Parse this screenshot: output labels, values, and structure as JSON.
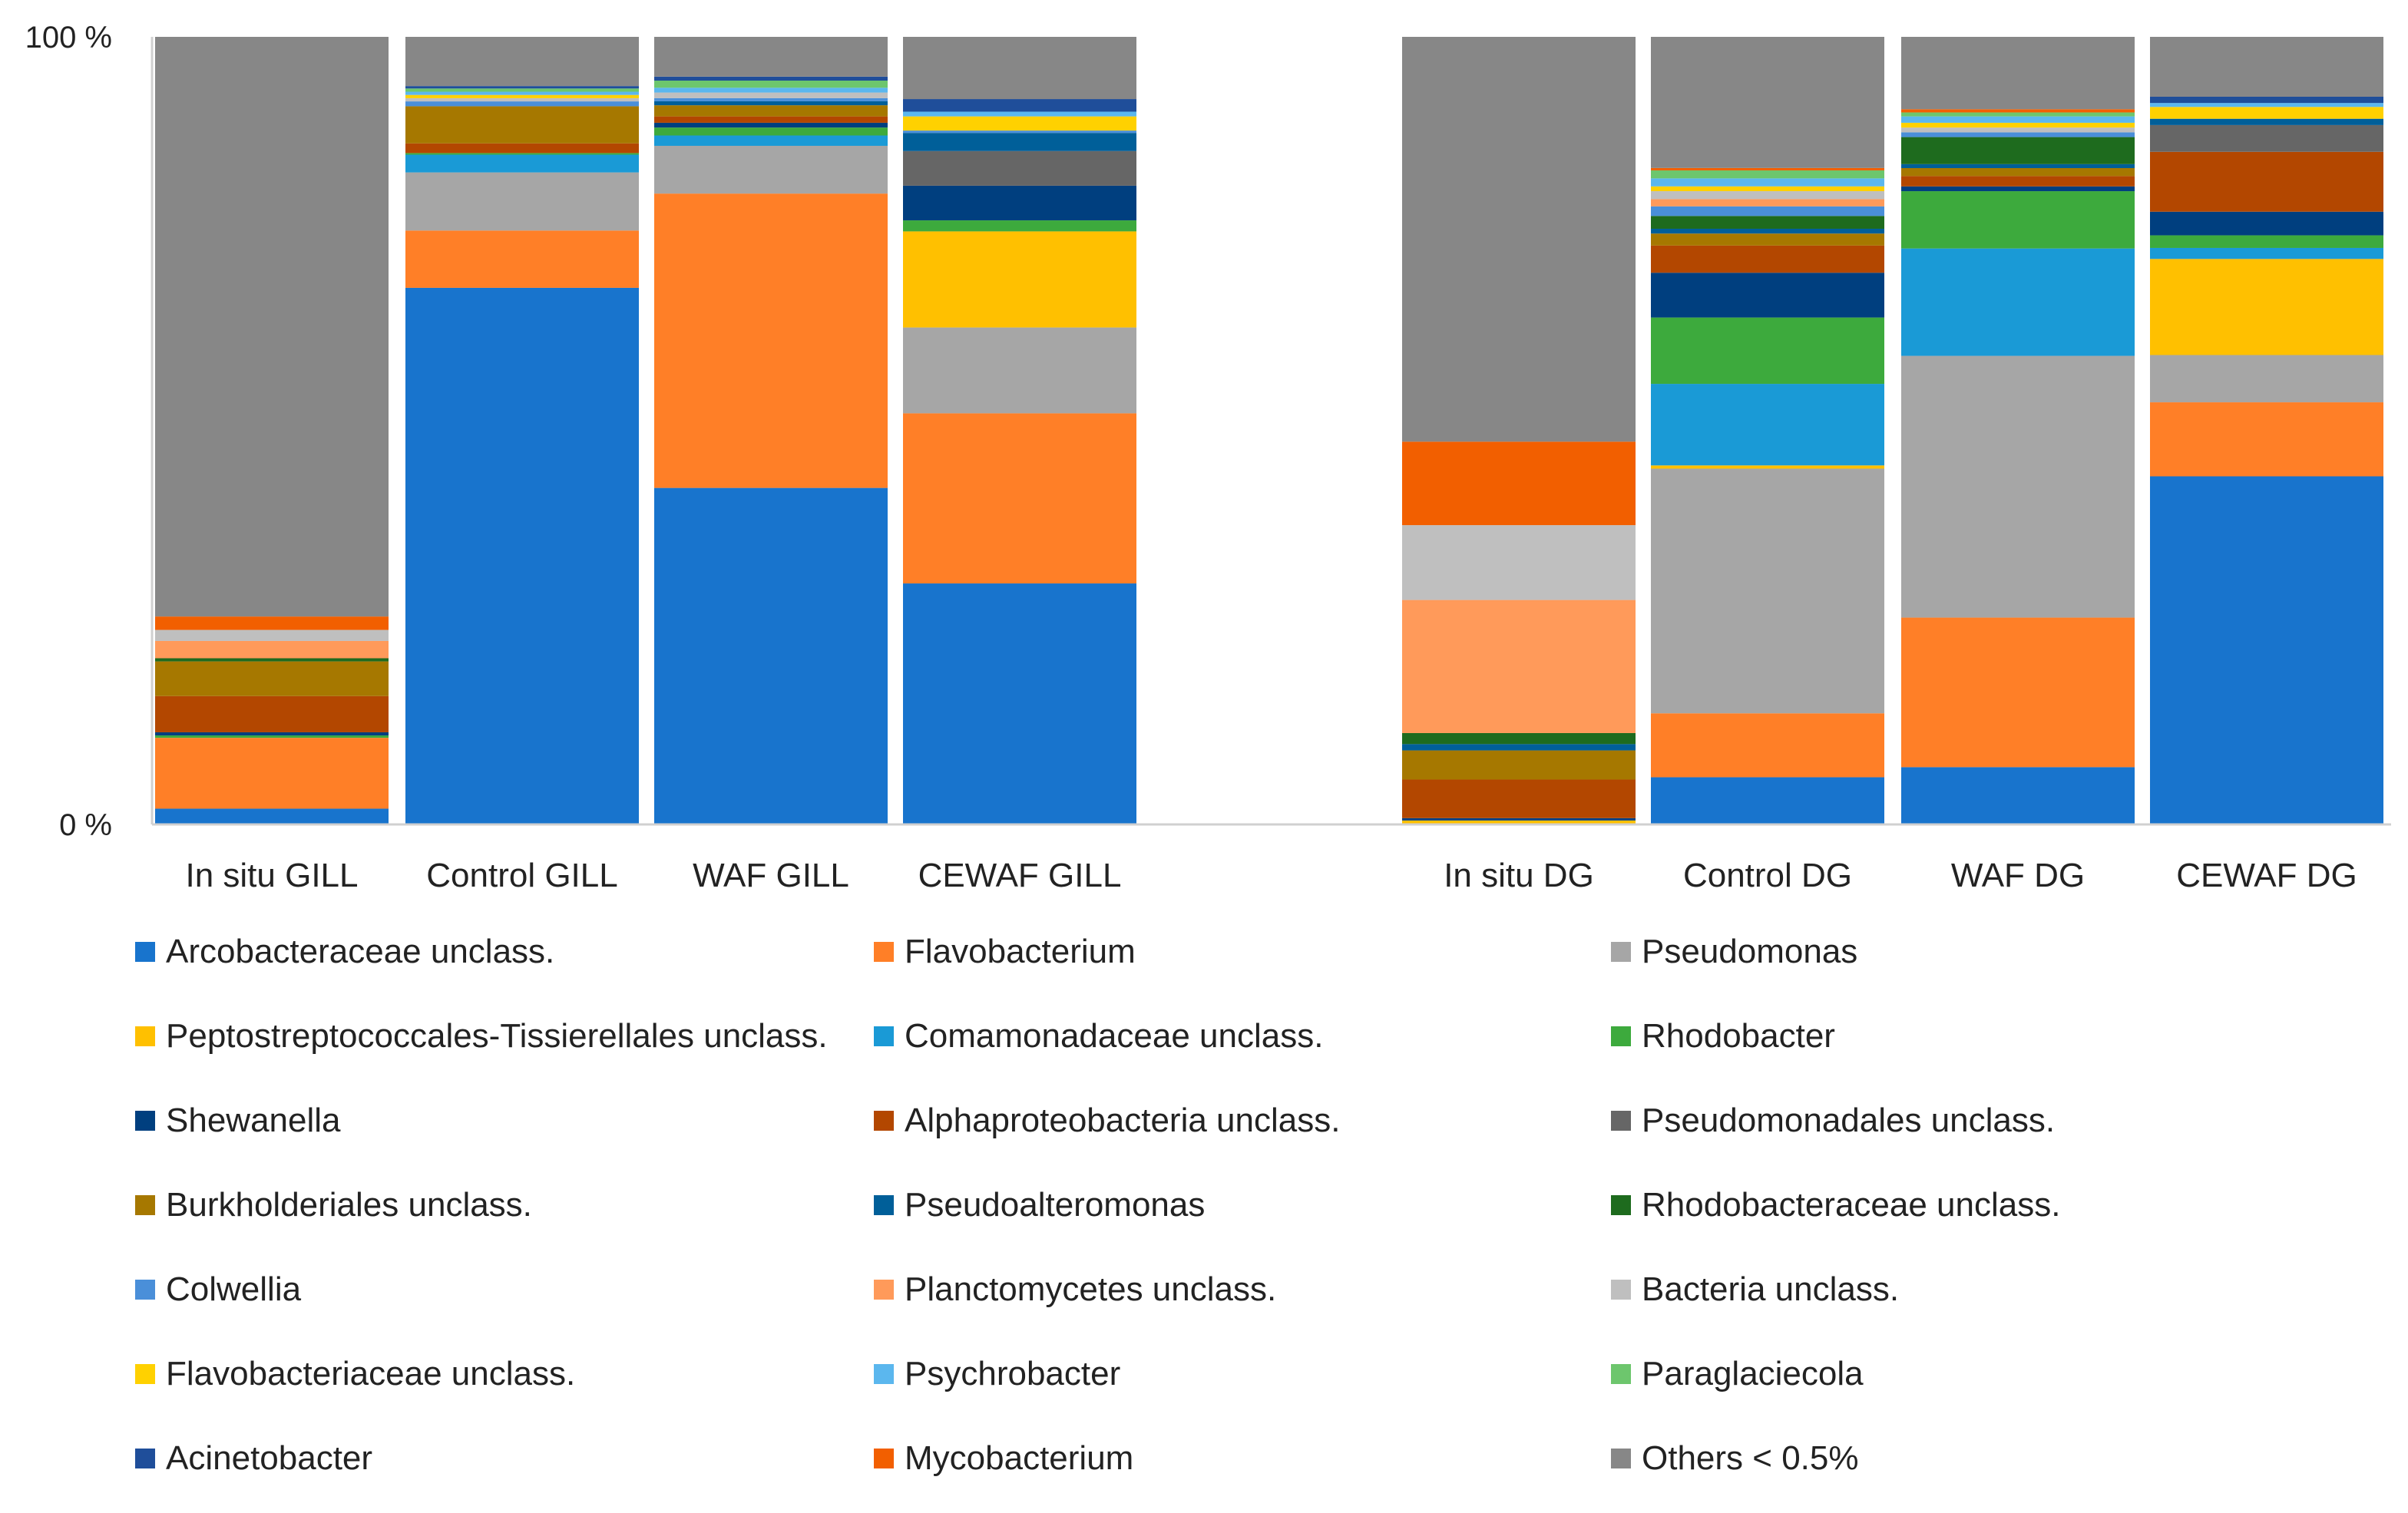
{
  "chart_data": {
    "type": "bar",
    "stacked": true,
    "percent": true,
    "ylim": [
      0,
      100
    ],
    "ytick_labels": [
      "0 %",
      "100 %"
    ],
    "categories": [
      "In situ GILL",
      "Control GILL",
      "WAF GILL",
      "CEWAF GILL",
      "In situ DG",
      "Control DG",
      "WAF DG",
      "CEWAF DG"
    ],
    "series": [
      {
        "name": "Arcobacteraceae unclass.",
        "color": "#1874CD",
        "values": [
          2.0,
          66.5,
          42.3,
          30.6,
          0,
          5.9,
          7.2,
          44.2
        ]
      },
      {
        "name": "Flavobacterium",
        "color": "#FF7F27",
        "values": [
          9.0,
          7.1,
          37.0,
          21.6,
          0,
          8.0,
          18.8,
          9.4
        ]
      },
      {
        "name": "Pseudomonas",
        "color": "#A6A6A6",
        "values": [
          0,
          7.2,
          6.0,
          10.9,
          0,
          30.6,
          32.9,
          6.0
        ]
      },
      {
        "name": "Peptostreptococcales-Tissierellales unclass.",
        "color": "#FFC000",
        "values": [
          0,
          0,
          0,
          12.2,
          0.5,
          0.4,
          0,
          12.2
        ]
      },
      {
        "name": "Comamonadaceae unclass.",
        "color": "#1A9AD6",
        "values": [
          0,
          2.2,
          1.3,
          0,
          0,
          10.2,
          13.5,
          1.4
        ]
      },
      {
        "name": "Rhodobacter",
        "color": "#3DAA3D",
        "values": [
          0.3,
          0.2,
          1.0,
          1.4,
          0,
          8.3,
          7.2,
          1.6
        ]
      },
      {
        "name": "Shewanella",
        "color": "#003F7F",
        "values": [
          0.4,
          0,
          0.6,
          4.4,
          0.3,
          5.6,
          0.6,
          3.0
        ]
      },
      {
        "name": "Alphaproteobacteria unclass.",
        "color": "#B34700",
        "values": [
          4.6,
          1.2,
          0.8,
          0,
          4.9,
          3.4,
          1.3,
          7.6
        ]
      },
      {
        "name": "Pseudomonadales unclass.",
        "color": "#666666",
        "values": [
          0,
          0,
          0,
          4.4,
          0,
          0,
          0,
          3.4
        ]
      },
      {
        "name": "Burkholderiales unclass.",
        "color": "#A67800",
        "values": [
          4.4,
          4.6,
          1.4,
          0,
          3.7,
          1.5,
          1.0,
          0
        ]
      },
      {
        "name": "Pseudoalteromonas",
        "color": "#005F99",
        "values": [
          0,
          0,
          0.5,
          2.3,
          0.8,
          0.6,
          0.5,
          0.8
        ]
      },
      {
        "name": "Rhodobacteraceae unclass.",
        "color": "#1E6B1E",
        "values": [
          0.4,
          0,
          0,
          0,
          1.4,
          1.6,
          3.4,
          0
        ]
      },
      {
        "name": "Colwellia",
        "color": "#4A8FD9",
        "values": [
          0,
          0.6,
          0.4,
          0.3,
          0,
          1.2,
          0.6,
          0
        ]
      },
      {
        "name": "Planctomycetes unclass.",
        "color": "#FF9A5A",
        "values": [
          2.2,
          0,
          0,
          0,
          16.9,
          0.9,
          0,
          0
        ]
      },
      {
        "name": "Bacteria unclass.",
        "color": "#BFBFBF",
        "values": [
          1.4,
          0.4,
          0.7,
          0,
          9.5,
          1.0,
          0.6,
          0
        ]
      },
      {
        "name": "Flavobacteriaceae unclass.",
        "color": "#FFD100",
        "values": [
          0,
          0.4,
          0,
          1.8,
          0,
          0.6,
          0.6,
          1.5
        ]
      },
      {
        "name": "Psychrobacter",
        "color": "#5BB7EE",
        "values": [
          0,
          0.4,
          0.6,
          0.6,
          0,
          1.0,
          0.8,
          0.5
        ]
      },
      {
        "name": "Paraglaciecola",
        "color": "#6DC66D",
        "values": [
          0,
          0.4,
          0.9,
          0,
          0,
          1.0,
          0.5,
          0
        ]
      },
      {
        "name": "Acinetobacter",
        "color": "#1F4E9A",
        "values": [
          0,
          0.3,
          0.5,
          1.6,
          0,
          0,
          0,
          0.8
        ]
      },
      {
        "name": "Mycobacterium",
        "color": "#F25F00",
        "values": [
          1.7,
          0,
          0,
          0,
          10.6,
          0.3,
          0.4,
          0
        ]
      },
      {
        "name": "Others < 0.5%",
        "color": "#878787",
        "values": [
          73.6,
          6.1,
          5.0,
          7.9,
          51.4,
          16.4,
          9.1,
          7.6
        ]
      }
    ]
  }
}
